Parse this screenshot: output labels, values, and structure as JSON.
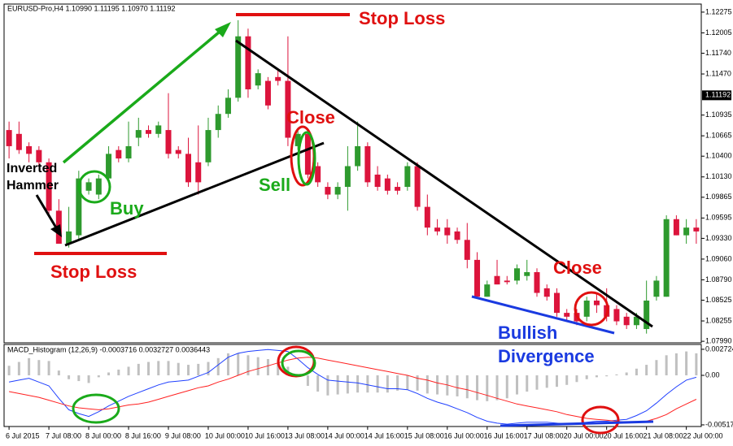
{
  "chart_data": [
    {
      "type": "candlestick",
      "title": "EURUSD-Pro,H4  1.10990 1.11195 1.10970 1.11192",
      "open": [
        1.1074,
        1.1069,
        1.1053,
        1.1048,
        1.1032,
        1.0969,
        1.0926,
        1.0937,
        1.0995,
        1.099,
        1.1011,
        1.1048,
        1.1037,
        1.1064,
        1.1074,
        1.1069,
        1.1074,
        1.1048,
        1.1043,
        1.1032,
        1.1032,
        1.1074,
        1.1095,
        1.1116,
        1.1196,
        1.1132,
        1.1138,
        1.1143,
        1.1138,
        1.1053,
        1.1069,
        1.1027,
        1.1,
        1.099,
        1.1,
        1.1027,
        1.1053,
        1.1016,
        1.1011,
        1.1,
        1.1,
        1.1027,
        1.0974,
        1.0947,
        1.0947,
        1.0942,
        1.0931,
        1.0905,
        1.0857,
        1.0884,
        1.0878,
        1.0878,
        1.0884,
        1.0889,
        1.0868,
        1.0862,
        1.0836,
        1.0836,
        1.0831,
        1.0852,
        1.0846,
        1.0841,
        1.0831,
        1.082,
        1.0815,
        1.0857,
        1.0857,
        1.0958,
        1.0937,
        1.0947
      ],
      "high": [
        1.1085,
        1.1085,
        1.1058,
        1.1053,
        1.1037,
        1.0984,
        1.0974,
        1.1021,
        1.1011,
        1.1016,
        1.1053,
        1.1053,
        1.1085,
        1.109,
        1.108,
        1.1085,
        1.1122,
        1.1053,
        1.1064,
        1.108,
        1.109,
        1.1106,
        1.1127,
        1.1217,
        1.1206,
        1.1153,
        1.1143,
        1.1153,
        1.1196,
        1.1074,
        1.1074,
        1.1032,
        1.1006,
        1.1006,
        1.1053,
        1.1085,
        1.1058,
        1.1027,
        1.1016,
        1.1006,
        1.1032,
        1.1032,
        1.099,
        1.0958,
        1.0958,
        1.0947,
        1.0953,
        1.0915,
        1.0878,
        1.0905,
        1.0884,
        1.0899,
        1.0905,
        1.0894,
        1.0873,
        1.0868,
        1.0841,
        1.0841,
        1.0857,
        1.0862,
        1.0868,
        1.0846,
        1.0836,
        1.0836,
        1.0878,
        1.0884,
        1.0963,
        1.0963,
        1.0958,
        1.0958
      ],
      "low": [
        1.1037,
        1.1043,
        1.1032,
        1.1027,
        1.0963,
        1.0926,
        1.0921,
        1.0931,
        1.099,
        1.0984,
        1.1006,
        1.1032,
        1.1032,
        1.1053,
        1.1064,
        1.1064,
        1.1037,
        1.1037,
        1.1,
        1.099,
        1.1027,
        1.1064,
        1.109,
        1.1111,
        1.1116,
        1.1127,
        1.1101,
        1.1132,
        1.1053,
        1.1048,
        1.1011,
        1.1,
        1.0984,
        1.0984,
        1.0969,
        1.1021,
        1.1,
        1.0995,
        1.099,
        1.099,
        1.0995,
        1.0969,
        1.0937,
        1.0937,
        1.0926,
        1.0926,
        1.0894,
        1.0857,
        1.0857,
        1.0873,
        1.0873,
        1.0873,
        1.0878,
        1.0857,
        1.0852,
        1.0831,
        1.0825,
        1.082,
        1.0825,
        1.0836,
        1.0825,
        1.082,
        1.0815,
        1.0815,
        1.0809,
        1.0852,
        1.0857,
        1.0937,
        1.0926,
        1.0926
      ],
      "close": [
        1.1053,
        1.1048,
        1.1043,
        1.1032,
        1.0969,
        1.0926,
        1.0942,
        1.1011,
        1.1006,
        1.1011,
        1.1043,
        1.1037,
        1.1053,
        1.1074,
        1.1069,
        1.108,
        1.1043,
        1.1043,
        1.1006,
        1.1006,
        1.1074,
        1.1095,
        1.1116,
        1.1196,
        1.1127,
        1.1148,
        1.1106,
        1.1138,
        1.1064,
        1.1069,
        1.1016,
        1.1006,
        1.099,
        1.1,
        1.1027,
        1.1053,
        1.1006,
        1.1,
        1.0995,
        1.0995,
        1.1027,
        1.0974,
        1.0947,
        1.0942,
        1.0937,
        1.0931,
        1.0905,
        1.0857,
        1.0873,
        1.0873,
        1.0876,
        1.0894,
        1.0889,
        1.0862,
        1.0857,
        1.0836,
        1.0831,
        1.0825,
        1.0852,
        1.0846,
        1.0831,
        1.0825,
        1.082,
        1.0831,
        1.0852,
        1.0878,
        1.0958,
        1.0937,
        1.0947,
        1.0942
      ],
      "up_color": "#2e9a2e",
      "down_color": "#dc143c",
      "ylim": [
        1.0797,
        1.1238
      ],
      "yticks": [
        1.12275,
        1.12005,
        {
          "value": 1.1174,
          "label": "1.11740"
        },
        {
          "value": 1.1147,
          "label": "1.11470"
        },
        1.10935,
        1.10665,
        {
          "value": 1.104,
          "label": "1.10400"
        },
        {
          "value": 1.1013,
          "label": "1.10130"
        },
        1.09865,
        1.09595,
        {
          "value": 1.0933,
          "label": "1.09330"
        },
        {
          "value": 1.0906,
          "label": "1.09060"
        },
        {
          "value": 1.0879,
          "label": "1.08790"
        },
        1.08525,
        1.08255,
        {
          "value": 1.0799,
          "label": "1.07990"
        }
      ],
      "last_price": 1.11192,
      "annotations": [
        "Stop Loss",
        "Stop Loss",
        "Inverted",
        "Hammer",
        "Buy",
        "Sell",
        "Close",
        "Close",
        "Bullish",
        "Divergence"
      ]
    },
    {
      "type": "macd",
      "title": "MACD_Histogram (12,26,9) -0.0003716 0.0032727 0.0036443",
      "categories": [
        "6 Jul 2015",
        null,
        null,
        null,
        "7 Jul 08:00",
        null,
        null,
        null,
        "8 Jul 00:00",
        null,
        null,
        null,
        "8 Jul 16:00",
        null,
        null,
        null,
        "9 Jul 08:00",
        null,
        null,
        null,
        "10 Jul 00:00",
        null,
        null,
        null,
        "10 Jul 16:00",
        null,
        null,
        null,
        "13 Jul 08:00",
        null,
        null,
        null,
        "14 Jul 00:00",
        null,
        null,
        null,
        "14 Jul 16:00",
        null,
        null,
        null,
        "15 Jul 08:00",
        null,
        null,
        null,
        "16 Jul 00:00",
        null,
        null,
        null,
        "16 Jul 16:00",
        null,
        null,
        null,
        "17 Jul 08:00",
        null,
        null,
        null,
        "20 Jul 00:00",
        null,
        null,
        null,
        "20 Jul 16:00",
        null,
        null,
        null,
        "21 Jul 08:00",
        null,
        null,
        null,
        "22 Jul 00:00",
        null
      ],
      "series": [
        {
          "kind": "bar",
          "color": "#c0c0c0",
          "values": [
            0.001,
            0.0014,
            0.0018,
            0.0016,
            0.0015,
            0.0005,
            -0.0004,
            -0.0006,
            -0.0008,
            -0.0002,
            0.0003,
            0.0006,
            0.0009,
            0.0012,
            0.0014,
            0.0015,
            0.0015,
            0.0013,
            0.0011,
            0.0012,
            0.0014,
            0.0018,
            0.0023,
            0.0023,
            0.0021,
            0.0019,
            0.0017,
            0.0013,
            0.0009,
            -0.0001,
            -0.0011,
            -0.0017,
            -0.0021,
            -0.002,
            -0.0019,
            -0.0018,
            -0.0018,
            -0.0018,
            -0.0018,
            -0.0016,
            -0.0015,
            -0.0016,
            -0.0019,
            -0.002,
            -0.0021,
            -0.0022,
            -0.0024,
            -0.0026,
            -0.0027,
            -0.0026,
            -0.0024,
            -0.002,
            -0.0017,
            -0.0015,
            -0.0013,
            -0.0012,
            -0.001,
            -0.0007,
            -0.0004,
            -0.0002,
            -0.0001,
            0.0001,
            0.0003,
            0.0007,
            0.0011,
            0.0016,
            0.0021,
            0.0023,
            0.0025,
            0.0023
          ]
        },
        {
          "kind": "line",
          "color": "#2040ff",
          "values": [
            -0.0007,
            -0.0005,
            -0.0003,
            -0.0007,
            -0.0011,
            -0.0024,
            -0.0036,
            -0.004,
            -0.0043,
            -0.0038,
            -0.0032,
            -0.0027,
            -0.0022,
            -0.0018,
            -0.0014,
            -0.001,
            -0.0007,
            -0.0006,
            -0.0005,
            -0.0001,
            0.0003,
            0.0011,
            0.0019,
            0.0023,
            0.0025,
            0.0026,
            0.0027,
            0.0026,
            0.0025,
            0.0017,
            0.0008,
            0.0001,
            -0.0005,
            -0.0006,
            -0.0007,
            -0.0008,
            -0.001,
            -0.0012,
            -0.0014,
            -0.0014,
            -0.0015,
            -0.0019,
            -0.0024,
            -0.0028,
            -0.0031,
            -0.0035,
            -0.0039,
            -0.0044,
            -0.0048,
            -0.005,
            -0.0051,
            -0.005,
            -0.0049,
            -0.0049,
            -0.0049,
            -0.005,
            -0.0051,
            -0.005,
            -0.0049,
            -0.0048,
            -0.0048,
            -0.0047,
            -0.0046,
            -0.0042,
            -0.0037,
            -0.0029,
            -0.002,
            -0.0012,
            -0.0005,
            -0.0002
          ]
        },
        {
          "kind": "line",
          "color": "#ff2020",
          "values": [
            -0.0017,
            -0.0019,
            -0.0021,
            -0.0023,
            -0.0026,
            -0.0029,
            -0.0032,
            -0.0034,
            -0.0035,
            -0.0036,
            -0.0035,
            -0.0033,
            -0.0031,
            -0.003,
            -0.0028,
            -0.0025,
            -0.0022,
            -0.0019,
            -0.0016,
            -0.0013,
            -0.0011,
            -0.0007,
            -0.0004,
            0.0,
            0.0004,
            0.0007,
            0.001,
            0.0013,
            0.0016,
            0.0018,
            0.0019,
            0.0018,
            0.0016,
            0.0014,
            0.0012,
            0.001,
            0.0008,
            0.0006,
            0.0004,
            0.0002,
            0.0,
            -0.0003,
            -0.0005,
            -0.0008,
            -0.001,
            -0.0013,
            -0.0015,
            -0.0018,
            -0.0021,
            -0.0024,
            -0.0027,
            -0.003,
            -0.0032,
            -0.0034,
            -0.0036,
            -0.0038,
            -0.0041,
            -0.0043,
            -0.0045,
            -0.0046,
            -0.0047,
            -0.0048,
            -0.0049,
            -0.0049,
            -0.0048,
            -0.0045,
            -0.0041,
            -0.0035,
            -0.003,
            -0.0025
          ]
        }
      ],
      "ylim": [
        -0.00535,
        0.00323
      ],
      "yticks": [
        0.002724,
        {
          "value": 0,
          "label": "0.00"
        },
        -0.005178
      ]
    }
  ]
}
